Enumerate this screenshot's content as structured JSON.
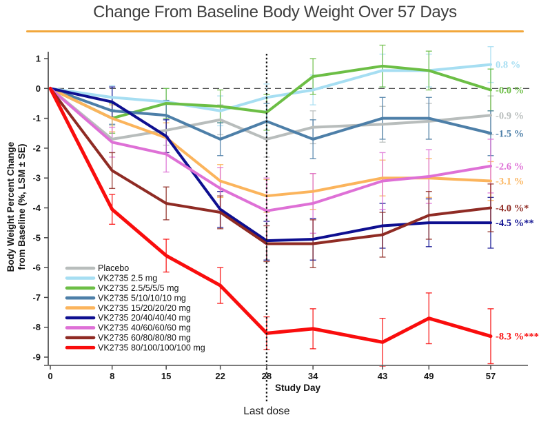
{
  "title": "Change From Baseline Body Weight Over 57 Days",
  "colors": {
    "accent_rule": "#F2A73B",
    "title_text": "#3E3E3E",
    "axis_line": "#7A7A7A",
    "zero_line": "#333333",
    "last_dose_line": "#111111"
  },
  "annotation": {
    "x": 28,
    "label": "Last dose"
  },
  "chart_data": {
    "type": "line",
    "title": "Change From Baseline Body Weight Over 57 Days",
    "xlabel": "Study Day",
    "ylabel_line1": "Body Weight Percent Change",
    "ylabel_line2": "from Baseline (%, LSM ± SE)",
    "x": [
      0,
      8,
      15,
      22,
      28,
      34,
      43,
      49,
      57
    ],
    "xticks": [
      0,
      8,
      15,
      22,
      28,
      34,
      43,
      49,
      57
    ],
    "yticks": [
      1,
      0,
      -1,
      -2,
      -3,
      -4,
      -5,
      -6,
      -7,
      -8,
      -9
    ],
    "xlim": [
      0,
      62
    ],
    "ylim": [
      -9.5,
      1.3
    ],
    "grid": false,
    "zero_baseline_dashed": true,
    "legend_position": "lower-left",
    "last_dose_day": 28,
    "series": [
      {
        "name": "Placebo",
        "color": "#B8BDBC",
        "values": [
          0,
          -1.7,
          -1.4,
          -1.05,
          -1.7,
          -1.3,
          -1.2,
          -1.1,
          -0.9
        ],
        "se": [
          0,
          0.45,
          0.5,
          0.5,
          0.6,
          0.55,
          0.6,
          0.6,
          0.65
        ],
        "end_label": "-0.9 %"
      },
      {
        "name": "VK2735 2.5 mg",
        "color": "#A6DEF2",
        "values": [
          0,
          -0.3,
          -0.45,
          -0.75,
          -0.3,
          -0.05,
          0.6,
          0.6,
          0.8
        ],
        "se": [
          0,
          0.4,
          0.45,
          0.5,
          0.45,
          0.5,
          0.55,
          0.55,
          0.6
        ],
        "end_label": "0.8 %"
      },
      {
        "name": "VK2735 2.5/5/5/5 mg",
        "color": "#6CBE45",
        "values": [
          0,
          -1.0,
          -0.5,
          -0.6,
          -0.8,
          0.4,
          0.75,
          0.6,
          -0.05
        ],
        "se": [
          0,
          0.5,
          0.5,
          0.55,
          0.6,
          0.6,
          0.7,
          0.65,
          0.7
        ],
        "end_label": "-0.0 %"
      },
      {
        "name": "VK2735 5/10/10/10 mg",
        "color": "#4D7FA8",
        "values": [
          0,
          -0.75,
          -0.9,
          -1.7,
          -1.1,
          -1.7,
          -1.0,
          -1.0,
          -1.5
        ],
        "se": [
          0,
          0.45,
          0.5,
          0.55,
          0.6,
          0.65,
          0.7,
          0.7,
          0.75
        ],
        "end_label": "-1.5 %"
      },
      {
        "name": "VK2735 15/20/20/20 mg",
        "color": "#FBB45C",
        "values": [
          0,
          -1.0,
          -1.65,
          -3.1,
          -3.6,
          -3.45,
          -3.0,
          -3.0,
          -3.1
        ],
        "se": [
          0,
          0.45,
          0.5,
          0.55,
          0.55,
          0.6,
          0.6,
          0.65,
          0.65
        ],
        "end_label": "-3.1 %"
      },
      {
        "name": "VK2735 20/40/40/40 mg",
        "color": "#0E0F90",
        "values": [
          0,
          -0.45,
          -1.6,
          -4.05,
          -5.1,
          -5.05,
          -4.6,
          -4.5,
          -4.5
        ],
        "se": [
          0,
          0.5,
          0.55,
          0.6,
          0.65,
          0.7,
          0.75,
          0.8,
          0.85
        ],
        "end_label": "-4.5 %**"
      },
      {
        "name": "VK2735 40/60/60/60 mg",
        "color": "#DE70D6",
        "values": [
          0,
          -1.8,
          -2.2,
          -3.35,
          -4.1,
          -3.85,
          -3.1,
          -2.95,
          -2.6
        ],
        "se": [
          0,
          0.5,
          0.6,
          0.7,
          1.1,
          1.0,
          0.95,
          0.9,
          0.9
        ],
        "end_label": "-2.6 %"
      },
      {
        "name": "VK2735 60/80/80/80 mg",
        "color": "#8F2B24",
        "values": [
          0,
          -2.75,
          -3.85,
          -4.15,
          -5.2,
          -5.2,
          -4.9,
          -4.25,
          -4.0
        ],
        "se": [
          0,
          0.6,
          0.55,
          0.55,
          0.6,
          0.8,
          0.75,
          0.8,
          0.8
        ],
        "end_label": "-4.0 %*"
      },
      {
        "name": "VK2735 80/100/100/100 mg",
        "color": "#F90D0D",
        "values": [
          0,
          -4.05,
          -5.6,
          -6.6,
          -8.2,
          -8.05,
          -8.5,
          -7.7,
          -8.3
        ],
        "se": [
          0,
          0.5,
          0.55,
          0.6,
          0.55,
          0.67,
          0.8,
          0.85,
          0.92
        ],
        "end_label": "-8.3 %***"
      }
    ]
  }
}
